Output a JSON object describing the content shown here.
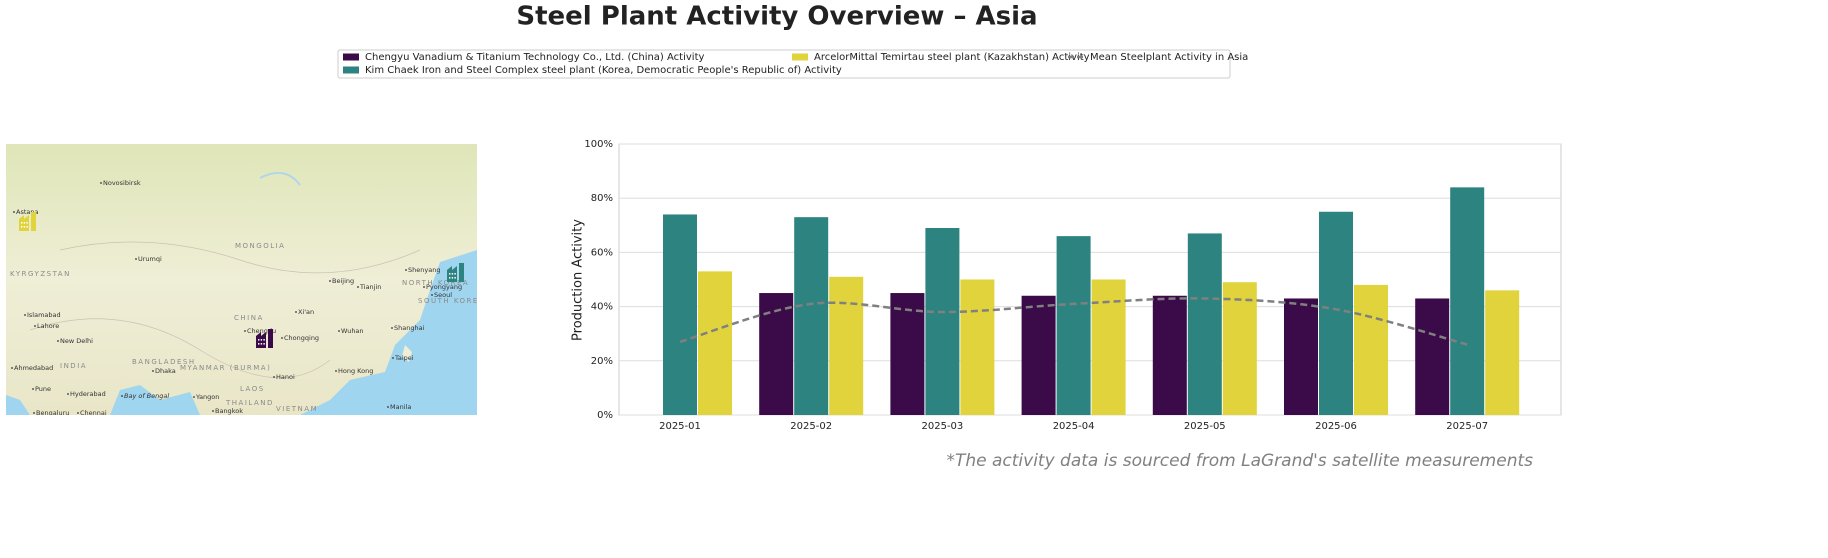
{
  "chart_data": {
    "type": "bar",
    "title": "Steel Plant Activity Overview – Asia",
    "ylabel": "Production Activity",
    "footnote": "*The activity data is sourced from LaGrand's satellite measurements",
    "categories": [
      "2025-01",
      "2025-02",
      "2025-03",
      "2025-04",
      "2025-05",
      "2025-06",
      "2025-07"
    ],
    "series": [
      {
        "name": "Chengyu Vanadium & Titanium Technology Co., Ltd. (China) Activity",
        "color": "#3b0a48",
        "values": [
          null,
          45,
          45,
          44,
          44,
          43,
          43
        ]
      },
      {
        "name": "Kim Chaek Iron and Steel Complex steel plant (Korea, Democratic People's Republic of) Activity",
        "color": "#2d837f",
        "values": [
          74,
          73,
          69,
          66,
          67,
          75,
          84
        ]
      },
      {
        "name": "ArcelorMittal Temirtau steel plant (Kazakhstan) Activity",
        "color": "#e0d33b",
        "values": [
          53,
          51,
          50,
          50,
          49,
          48,
          46
        ]
      },
      {
        "name": "Mean Steelplant Activity in Asia",
        "type": "line",
        "color": "#808080",
        "dashed": true,
        "values": [
          27,
          41,
          38,
          41,
          43,
          39,
          26
        ]
      }
    ],
    "ylim": [
      0,
      100
    ],
    "yticks": [
      {
        "value": 0,
        "label": "0%"
      },
      {
        "value": 20,
        "label": "20%"
      },
      {
        "value": 40,
        "label": "40%"
      },
      {
        "value": 60,
        "label": "60%"
      },
      {
        "value": 80,
        "label": "80%"
      },
      {
        "value": 100,
        "label": "100%"
      }
    ],
    "grid": true,
    "legend": "top",
    "map": {
      "labels": [
        "Novosibirsk",
        "Astana",
        "MONGOLIA",
        "Urumqi",
        "KYRGYZSTAN",
        "Beijing",
        "Tianjin",
        "Shenyang",
        "NORTH KOREA",
        "Pyongyang",
        "Seoul",
        "SOUTH KOREA",
        "CHINA",
        "Xi'an",
        "Chengdu",
        "Chongqing",
        "Wuhan",
        "Shanghai",
        "Islamabad",
        "Lahore",
        "New Delhi",
        "INDIA",
        "Ahmedabad",
        "BANGLADESH",
        "MYANMAR (BURMA)",
        "Dhaka",
        "Hanoi",
        "Hong Kong",
        "Taipei",
        "LAOS",
        "Hyderabad",
        "Pune",
        "Bay of Bengal",
        "Yangon",
        "THAILAND",
        "Bangkok",
        "VIETNAM",
        "Manila",
        "Chennai",
        "Bengaluru"
      ]
    }
  }
}
